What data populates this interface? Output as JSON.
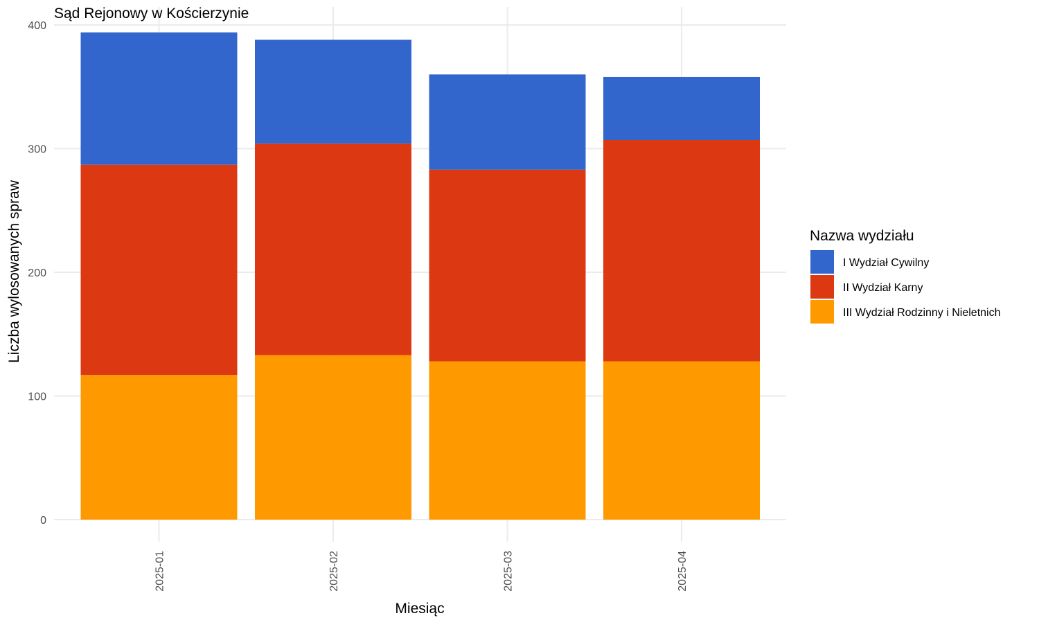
{
  "chart_data": {
    "type": "bar",
    "stacked": true,
    "title": "Sąd Rejonowy w Kościerzynie",
    "xlabel": "Miesiąc",
    "ylabel": "Liczba wylosowanych spraw",
    "categories": [
      "2025-01",
      "2025-02",
      "2025-03",
      "2025-04"
    ],
    "ylim": [
      0,
      400
    ],
    "yticks": [
      0,
      100,
      200,
      300,
      400
    ],
    "grid": true,
    "legend": {
      "title": "Nazwa wydziału",
      "position": "right"
    },
    "series": [
      {
        "name": "III Wydział Rodzinny i Nieletnich",
        "color": "#FF9900",
        "values": [
          117,
          133,
          128,
          128
        ]
      },
      {
        "name": "II Wydział Karny",
        "color": "#DC3912",
        "values": [
          170,
          171,
          155,
          179
        ]
      },
      {
        "name": "I Wydział Cywilny",
        "color": "#3366CC",
        "values": [
          107,
          84,
          77,
          51
        ]
      }
    ],
    "legend_order": [
      "I Wydział Cywilny",
      "II Wydział Karny",
      "III Wydział Rodzinny i Nieletnich"
    ]
  }
}
